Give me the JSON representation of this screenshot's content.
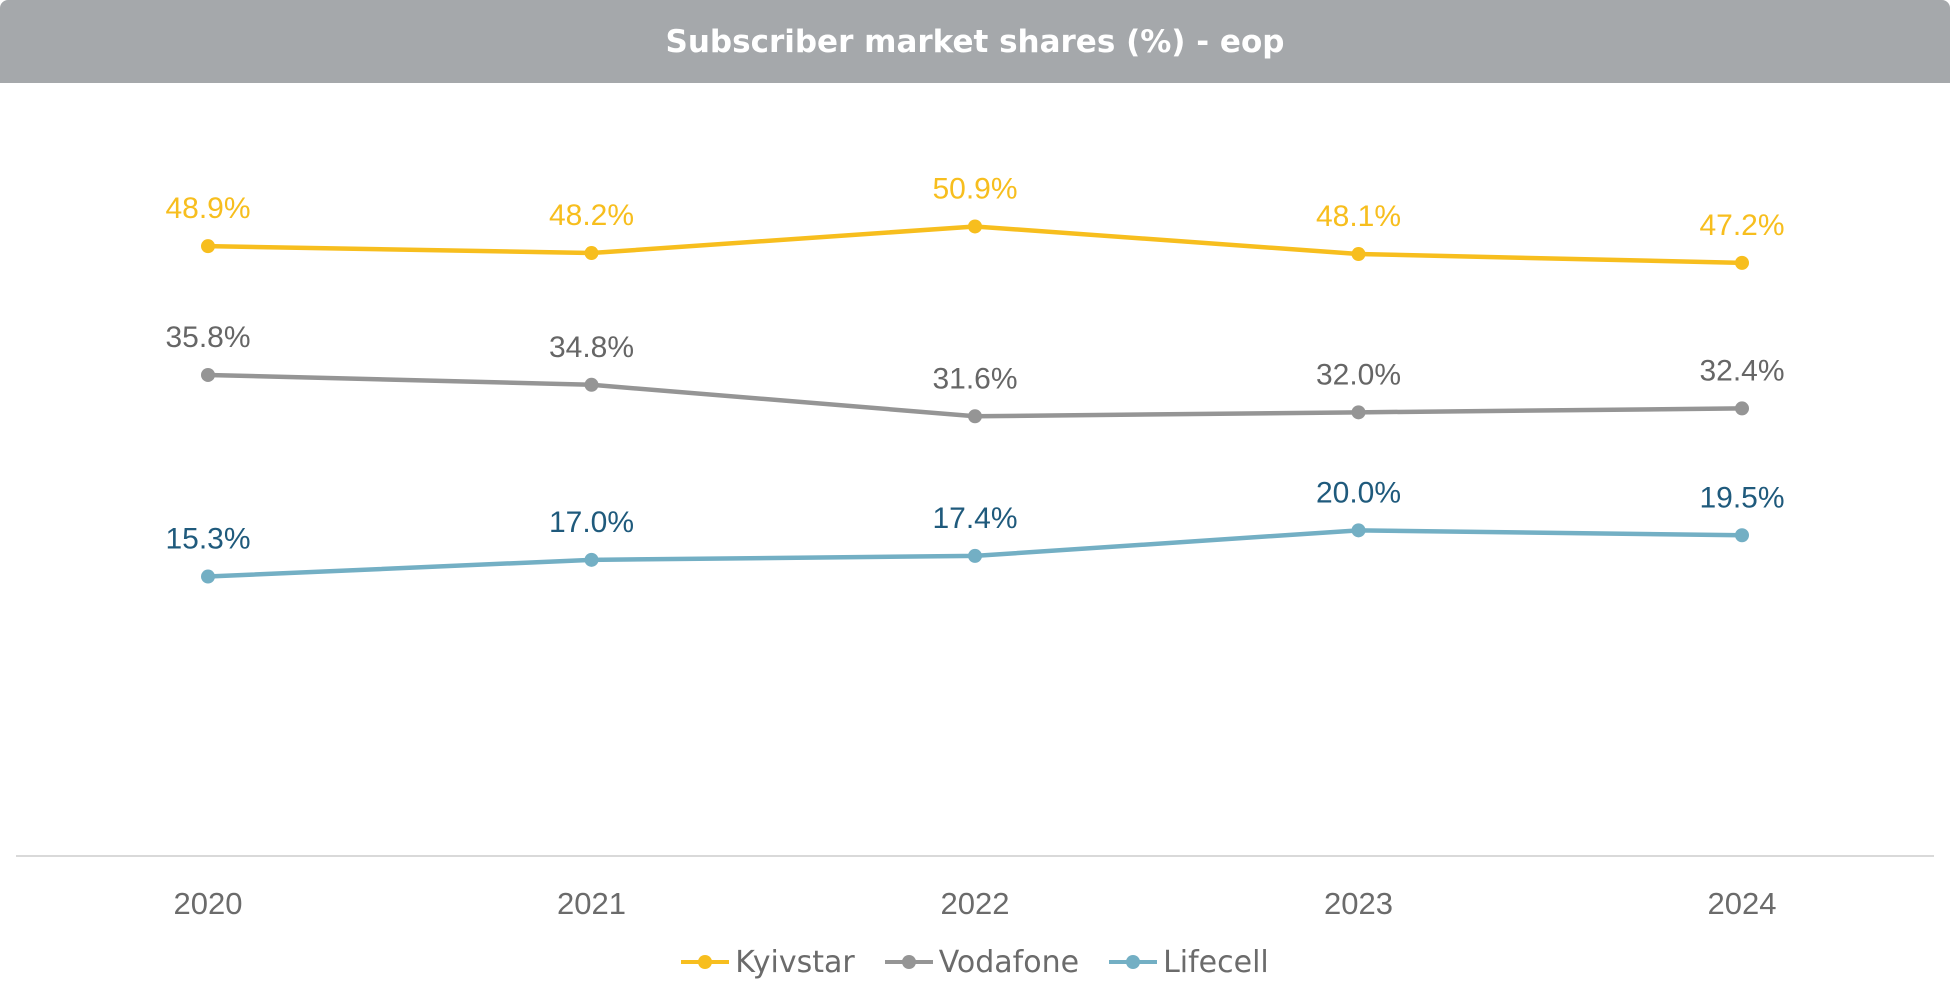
{
  "chart_data": {
    "type": "line",
    "title": "Subscriber market shares (%) - eop",
    "categories": [
      "2020",
      "2021",
      "2022",
      "2023",
      "2024"
    ],
    "ylim": [
      0,
      60
    ],
    "grid": false,
    "legend_position": "bottom",
    "series": [
      {
        "name": "Kyivstar",
        "color": "#f7be1e",
        "label_color": "#f7be1e",
        "values": [
          48.9,
          48.2,
          50.9,
          48.1,
          47.2
        ],
        "labels": [
          "48.9%",
          "48.2%",
          "50.9%",
          "48.1%",
          "47.2%"
        ]
      },
      {
        "name": "Vodafone",
        "color": "#959595",
        "label_color": "#666666",
        "values": [
          35.8,
          34.8,
          31.6,
          32.0,
          32.4
        ],
        "labels": [
          "35.8%",
          "34.8%",
          "31.6%",
          "32.0%",
          "32.4%"
        ]
      },
      {
        "name": "Lifecell",
        "color": "#73afc4",
        "label_color": "#1f5a7c",
        "values": [
          15.3,
          17.0,
          17.4,
          20.0,
          19.5
        ],
        "labels": [
          "15.3%",
          "17.0%",
          "17.4%",
          "20.0%",
          "19.5%"
        ]
      }
    ]
  }
}
